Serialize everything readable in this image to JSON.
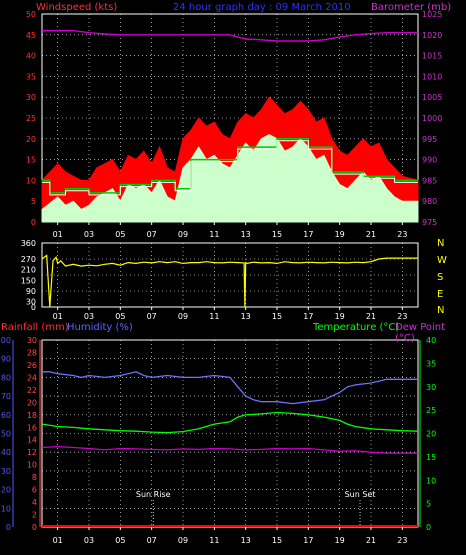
{
  "header": {
    "title": "24 hour graph day : 09 March 2010",
    "windspeed_label": "Windspeed (kts)",
    "barometer_label": "Barometer (mb)"
  },
  "middle": {
    "compass_labels": [
      "N",
      "W",
      "S",
      "E",
      "N"
    ]
  },
  "lower": {
    "rainfall_label": "Rainfall (mm)",
    "humidity_label": "Humidity (%)",
    "temperature_label": "Temperature (°C)",
    "dewpoint_label": "Dew Point (°C)",
    "sunrise_label": "Sun Rise",
    "sunset_label": "Sun Set"
  },
  "colors": {
    "wind_gust": "#ff0000",
    "wind_avg": "#ccffcc",
    "wind_green": "#00cc00",
    "barometer": "#cc00cc",
    "direction": "#ffff00",
    "humidity": "#7070ff",
    "temperature": "#00ff00",
    "dewpoint": "#cc00cc",
    "rainfall": "#ff0000",
    "rain_axis": "#ff4444",
    "hum_axis": "#5555ff",
    "temp_axis": "#00ff00",
    "grid": "#ffffff"
  },
  "chart_data": [
    {
      "type": "line",
      "x_ticks": [
        "01",
        "03",
        "05",
        "07",
        "09",
        "11",
        "13",
        "15",
        "17",
        "19",
        "21",
        "23"
      ],
      "y_left": {
        "ticks": [
          0,
          5,
          10,
          15,
          20,
          25,
          30,
          35,
          40,
          45,
          50
        ]
      },
      "y_right": {
        "ticks": [
          975,
          980,
          985,
          990,
          995,
          1000,
          1005,
          1010,
          1015,
          1020,
          1025
        ]
      },
      "series": [
        {
          "key": "gust",
          "axis": "left",
          "x": [
            0,
            1,
            1.5,
            2,
            2.5,
            3,
            3.5,
            4,
            4.5,
            5,
            5.5,
            6,
            6.5,
            7,
            7.5,
            8,
            8.5,
            9,
            9.5,
            10,
            10.5,
            11,
            11.5,
            12,
            12.5,
            13,
            13.5,
            14,
            14.5,
            15,
            15.5,
            16,
            16.5,
            17,
            17.5,
            18,
            18.5,
            19,
            19.5,
            20,
            20.5,
            21,
            21.5,
            22,
            22.5,
            23,
            24
          ],
          "y": [
            10,
            14,
            12,
            11,
            10,
            10,
            13,
            14,
            15,
            12,
            16,
            15,
            17,
            14,
            18,
            13,
            12,
            20,
            22,
            25,
            23,
            24,
            21,
            20,
            24,
            26,
            25,
            27,
            30,
            28,
            26,
            27,
            29,
            27,
            24,
            25,
            20,
            17,
            16,
            18,
            20,
            18,
            19,
            15,
            13,
            11,
            10
          ]
        },
        {
          "key": "avg",
          "axis": "left",
          "x": [
            0,
            1,
            1.5,
            2,
            2.5,
            3,
            3.5,
            4,
            4.5,
            5,
            5.5,
            6,
            6.5,
            7,
            7.5,
            8,
            8.5,
            9,
            9.5,
            10,
            10.5,
            11,
            11.5,
            12,
            12.5,
            13,
            13.5,
            14,
            14.5,
            15,
            15.5,
            16,
            16.5,
            17,
            17.5,
            18,
            18.5,
            19,
            19.5,
            20,
            20.5,
            21,
            21.5,
            22,
            22.5,
            23,
            24
          ],
          "y": [
            3,
            6,
            4,
            5,
            3,
            4,
            6,
            7,
            8,
            5,
            9,
            8,
            9,
            7,
            10,
            6,
            5,
            13,
            15,
            18,
            15,
            16,
            14,
            13,
            16,
            19,
            17,
            20,
            21,
            20,
            17,
            18,
            20,
            18,
            15,
            16,
            12,
            9,
            8,
            10,
            12,
            10,
            11,
            8,
            6,
            5,
            5
          ]
        },
        {
          "key": "avg_step",
          "axis": "left",
          "x": [
            0,
            0.5,
            0.5,
            1.5,
            1.5,
            3,
            3,
            5,
            5,
            7,
            7,
            8.5,
            8.5,
            9.5,
            9.5,
            12.5,
            12.5,
            15,
            15,
            17,
            17,
            18.5,
            18.5,
            20.5,
            20.5,
            22.5,
            22.5,
            24
          ],
          "y": [
            10,
            10,
            7,
            7,
            8,
            8,
            7,
            7,
            9,
            9,
            10,
            10,
            8,
            8,
            15,
            15,
            18,
            18,
            20,
            20,
            18,
            18,
            12,
            12,
            11,
            11,
            10,
            10
          ]
        },
        {
          "key": "barometer",
          "axis": "right",
          "x": [
            0,
            2,
            3,
            4,
            5,
            6,
            7,
            8,
            9,
            10,
            11,
            12,
            12.5,
            13,
            14,
            15,
            16,
            17,
            18,
            19,
            20,
            21,
            22,
            23,
            24
          ],
          "y": [
            1021,
            1021,
            1020.5,
            1020.2,
            1020,
            1020,
            1020,
            1020,
            1020,
            1020,
            1020,
            1020,
            1019.5,
            1019,
            1018.8,
            1018.5,
            1018.5,
            1018.5,
            1018.8,
            1019.5,
            1020,
            1020.3,
            1020.5,
            1020.5,
            1020.5
          ]
        }
      ]
    },
    {
      "type": "line",
      "x_ticks": [
        "01",
        "03",
        "05",
        "07",
        "09",
        "11",
        "13",
        "15",
        "17",
        "19",
        "21",
        "23"
      ],
      "y_left": {
        "ticks": [
          0,
          30,
          90,
          150,
          210,
          270,
          360
        ]
      },
      "series": [
        {
          "key": "direction",
          "x": [
            0,
            0.3,
            0.5,
            0.7,
            0.9,
            1.0,
            1.2,
            1.5,
            2,
            2.5,
            3,
            3.5,
            4,
            4.5,
            5,
            5.5,
            6,
            6.5,
            7,
            7.5,
            8,
            8.5,
            9,
            9.5,
            10,
            10.5,
            11,
            11.5,
            12,
            12.5,
            12.9,
            12.95,
            13.0,
            13.1,
            13.5,
            14,
            14.5,
            15,
            15.5,
            16,
            16.5,
            17,
            17.5,
            18,
            18.5,
            19,
            19.5,
            20,
            20.5,
            21,
            21.5,
            22,
            22.5,
            23,
            24
          ],
          "y": [
            270,
            290,
            0,
            260,
            280,
            245,
            260,
            230,
            240,
            230,
            235,
            232,
            240,
            245,
            235,
            250,
            245,
            252,
            248,
            255,
            250,
            255,
            245,
            250,
            250,
            255,
            250,
            248,
            252,
            250,
            248,
            0,
            250,
            245,
            252,
            248,
            250,
            245,
            255,
            250,
            248,
            252,
            250,
            248,
            252,
            250,
            248,
            252,
            250,
            255,
            270,
            275,
            275,
            275,
            275
          ]
        }
      ]
    },
    {
      "type": "line",
      "x_ticks": [
        "01",
        "03",
        "05",
        "07",
        "09",
        "11",
        "13",
        "15",
        "17",
        "19",
        "21",
        "23"
      ],
      "y_rain": {
        "ticks": [
          0,
          2,
          4,
          6,
          8,
          10,
          12,
          14,
          16,
          18,
          20,
          22,
          24,
          26,
          28,
          30
        ]
      },
      "y_hum": {
        "ticks": [
          0,
          10,
          20,
          30,
          40,
          50,
          60,
          70,
          80,
          90,
          100
        ]
      },
      "y_temp": {
        "ticks": [
          0,
          5,
          10,
          15,
          20,
          25,
          30,
          35,
          40
        ]
      },
      "markers": [
        {
          "label_key": "sunrise",
          "x": 7.1
        },
        {
          "label_key": "sunset",
          "x": 20.3
        }
      ],
      "series": [
        {
          "key": "humidity",
          "axis": "hum",
          "x": [
            0,
            0.5,
            1,
            2,
            2.5,
            3,
            4,
            5,
            5.5,
            6,
            6.5,
            7,
            8,
            9,
            10,
            11,
            12,
            12.5,
            13,
            13.5,
            14,
            15,
            16,
            17,
            18,
            19,
            19.5,
            20,
            21,
            22,
            23,
            24
          ],
          "y": [
            83,
            83,
            82,
            81,
            80,
            81,
            80,
            81,
            82,
            83,
            81,
            80,
            81,
            80,
            80,
            81,
            80,
            75,
            70,
            68,
            67,
            67,
            66,
            67,
            68,
            72,
            75,
            76,
            77,
            79,
            79,
            79
          ]
        },
        {
          "key": "temperature",
          "axis": "temp",
          "x": [
            0,
            1,
            2,
            3,
            4,
            5,
            6,
            7,
            8,
            9,
            10,
            11,
            12,
            12.5,
            13,
            14,
            15,
            16,
            17,
            18,
            19,
            19.5,
            20,
            21,
            22,
            23,
            24
          ],
          "y": [
            22,
            21.5,
            21.3,
            21,
            20.8,
            20.6,
            20.5,
            20.3,
            20.2,
            20.4,
            21,
            22,
            22.5,
            23.5,
            24,
            24.2,
            24.5,
            24.3,
            24,
            23.5,
            22.8,
            22,
            21.5,
            21,
            20.8,
            20.6,
            20.5
          ]
        },
        {
          "key": "dewpoint",
          "axis": "temp",
          "x": [
            0,
            1,
            2,
            3,
            4,
            5,
            6,
            7,
            8,
            9,
            10,
            11,
            12,
            13,
            14,
            15,
            16,
            17,
            18,
            19,
            20,
            21,
            22,
            23,
            24
          ],
          "y": [
            17,
            17.2,
            17,
            16.8,
            16.5,
            16.8,
            16.7,
            16.6,
            16.5,
            16.7,
            16.6,
            16.8,
            16.7,
            16.5,
            16.6,
            16.8,
            16.7,
            16.8,
            16.5,
            16.2,
            16.3,
            16,
            15.8,
            15.8,
            15.8
          ]
        },
        {
          "key": "rainfall",
          "axis": "rain",
          "x": [
            0,
            24
          ],
          "y": [
            0,
            0
          ]
        }
      ]
    }
  ]
}
